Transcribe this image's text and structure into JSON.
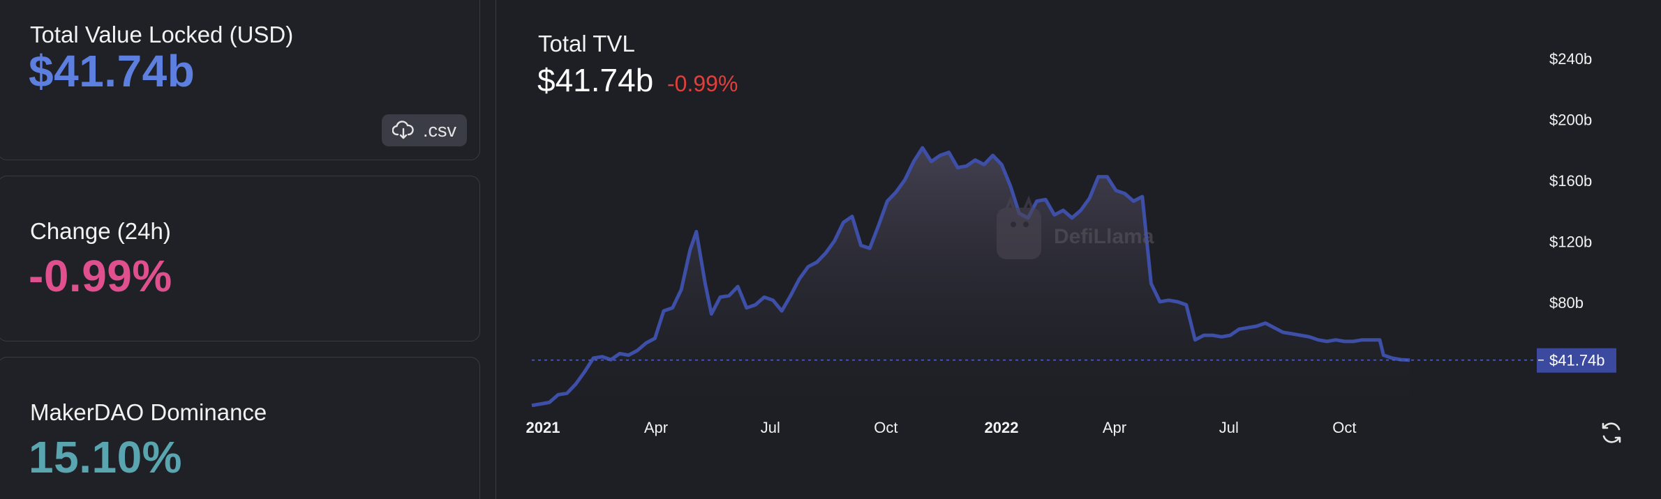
{
  "cards": [
    {
      "label": "Total Value Locked (USD)",
      "value": "$41.74b"
    },
    {
      "label": "Change (24h)",
      "value": "-0.99%"
    },
    {
      "label": "MakerDAO Dominance",
      "value": "15.10%"
    }
  ],
  "csv_button": {
    "label": ".csv",
    "icon": "cloud-download-icon"
  },
  "chart_header": {
    "title": "Total TVL",
    "value": "$41.74b",
    "change": "-0.99%"
  },
  "refresh_icon": "refresh-icon",
  "watermark": "DefiLlama",
  "colors": {
    "tvl_value": "#5c7fe0",
    "change_value": "#e0508f",
    "dominance_value": "#5aa6b0",
    "negative": "#e0403c",
    "series_line": "#3e4fa8",
    "current_label_bg": "#3b4a9e"
  },
  "chart_data": {
    "type": "area",
    "title": "Total TVL",
    "xlabel": "",
    "ylabel": "",
    "x_ticks": [
      "2021",
      "Apr",
      "Jul",
      "Oct",
      "2022",
      "Apr",
      "Jul",
      "Oct"
    ],
    "x_tick_bold": [
      true,
      false,
      false,
      false,
      true,
      false,
      false,
      false
    ],
    "y_ticks": [
      "$80b",
      "$120b",
      "$160b",
      "$200b",
      "$240b"
    ],
    "y_tick_values": [
      80,
      120,
      160,
      200,
      240
    ],
    "y_axis_position": "right",
    "y_min": 10,
    "y_max": 250,
    "unit": "billions USD",
    "current_value": 41.74,
    "current_value_label": "$41.74b",
    "grid": false,
    "legend": "none",
    "series": [
      {
        "values": [
          [
            "2021-01-01",
            12
          ],
          [
            "2021-01-08",
            13
          ],
          [
            "2021-01-15",
            14
          ],
          [
            "2021-01-22",
            19
          ],
          [
            "2021-01-29",
            20
          ],
          [
            "2021-02-05",
            26
          ],
          [
            "2021-02-12",
            34
          ],
          [
            "2021-02-19",
            43
          ],
          [
            "2021-02-26",
            44
          ],
          [
            "2021-03-05",
            42
          ],
          [
            "2021-03-12",
            46
          ],
          [
            "2021-03-19",
            45
          ],
          [
            "2021-03-26",
            48
          ],
          [
            "2021-04-02",
            53
          ],
          [
            "2021-04-09",
            56
          ],
          [
            "2021-04-16",
            74
          ],
          [
            "2021-04-23",
            76
          ],
          [
            "2021-04-30",
            88
          ],
          [
            "2021-05-07",
            114
          ],
          [
            "2021-05-12",
            126
          ],
          [
            "2021-05-19",
            92
          ],
          [
            "2021-05-24",
            72
          ],
          [
            "2021-05-31",
            83
          ],
          [
            "2021-06-07",
            84
          ],
          [
            "2021-06-14",
            90
          ],
          [
            "2021-06-21",
            76
          ],
          [
            "2021-06-28",
            78
          ],
          [
            "2021-07-05",
            83
          ],
          [
            "2021-07-12",
            81
          ],
          [
            "2021-07-19",
            74
          ],
          [
            "2021-07-26",
            84
          ],
          [
            "2021-08-02",
            95
          ],
          [
            "2021-08-09",
            103
          ],
          [
            "2021-08-16",
            106
          ],
          [
            "2021-08-23",
            112
          ],
          [
            "2021-08-30",
            120
          ],
          [
            "2021-09-06",
            132
          ],
          [
            "2021-09-13",
            136
          ],
          [
            "2021-09-20",
            117
          ],
          [
            "2021-09-27",
            115
          ],
          [
            "2021-10-04",
            130
          ],
          [
            "2021-10-11",
            146
          ],
          [
            "2021-10-18",
            152
          ],
          [
            "2021-10-25",
            160
          ],
          [
            "2021-11-01",
            172
          ],
          [
            "2021-11-08",
            181
          ],
          [
            "2021-11-15",
            172
          ],
          [
            "2021-11-22",
            176
          ],
          [
            "2021-11-29",
            178
          ],
          [
            "2021-12-06",
            168
          ],
          [
            "2021-12-13",
            169
          ],
          [
            "2021-12-20",
            173
          ],
          [
            "2021-12-27",
            170
          ],
          [
            "2022-01-03",
            176
          ],
          [
            "2022-01-10",
            170
          ],
          [
            "2022-01-17",
            156
          ],
          [
            "2022-01-24",
            138
          ],
          [
            "2022-01-31",
            135
          ],
          [
            "2022-02-07",
            146
          ],
          [
            "2022-02-14",
            147
          ],
          [
            "2022-02-21",
            137
          ],
          [
            "2022-02-28",
            140
          ],
          [
            "2022-03-07",
            135
          ],
          [
            "2022-03-14",
            140
          ],
          [
            "2022-03-21",
            148
          ],
          [
            "2022-03-28",
            162
          ],
          [
            "2022-04-04",
            162
          ],
          [
            "2022-04-11",
            153
          ],
          [
            "2022-04-18",
            151
          ],
          [
            "2022-04-25",
            146
          ],
          [
            "2022-05-02",
            149
          ],
          [
            "2022-05-09",
            92
          ],
          [
            "2022-05-16",
            80
          ],
          [
            "2022-05-23",
            81
          ],
          [
            "2022-05-30",
            80
          ],
          [
            "2022-06-06",
            78
          ],
          [
            "2022-06-13",
            55
          ],
          [
            "2022-06-20",
            58
          ],
          [
            "2022-06-27",
            58
          ],
          [
            "2022-07-04",
            57
          ],
          [
            "2022-07-11",
            58
          ],
          [
            "2022-07-18",
            62
          ],
          [
            "2022-07-25",
            63
          ],
          [
            "2022-08-01",
            64
          ],
          [
            "2022-08-08",
            66
          ],
          [
            "2022-08-15",
            63
          ],
          [
            "2022-08-22",
            60
          ],
          [
            "2022-08-29",
            59
          ],
          [
            "2022-09-05",
            58
          ],
          [
            "2022-09-12",
            57
          ],
          [
            "2022-09-19",
            55
          ],
          [
            "2022-09-26",
            54
          ],
          [
            "2022-10-03",
            55
          ],
          [
            "2022-10-10",
            54
          ],
          [
            "2022-10-17",
            54
          ],
          [
            "2022-10-24",
            55
          ],
          [
            "2022-10-31",
            55
          ],
          [
            "2022-11-07",
            55
          ],
          [
            "2022-11-10",
            45
          ],
          [
            "2022-11-17",
            43
          ],
          [
            "2022-11-24",
            42
          ],
          [
            "2022-12-01",
            41.74
          ]
        ]
      }
    ]
  }
}
